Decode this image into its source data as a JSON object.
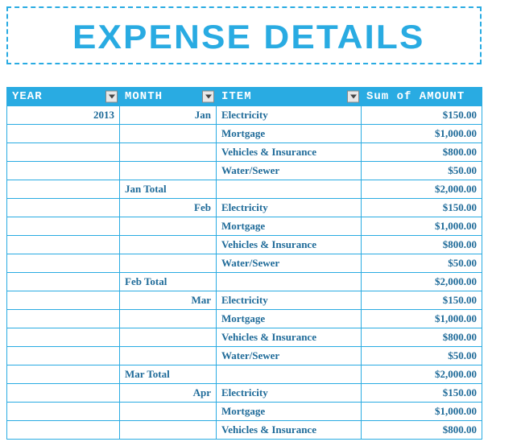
{
  "title": "EXPENSE DETAILS",
  "columns": {
    "year": "YEAR",
    "month": "MONTH",
    "item": "ITEM",
    "amount": "Sum of AMOUNT"
  },
  "colors": {
    "header_bg": "#29abe2",
    "header_text": "#ffffff",
    "border": "#29abe2",
    "cell_text": "#1f6b99",
    "title_color": "#29abe2"
  },
  "rows": [
    {
      "year": "2013",
      "month": "Jan",
      "month_align": "right",
      "item": "Electricity",
      "amount": "$150.00"
    },
    {
      "year": "",
      "month": "",
      "item": "Mortgage",
      "amount": "$1,000.00"
    },
    {
      "year": "",
      "month": "",
      "item": "Vehicles & Insurance",
      "amount": "$800.00"
    },
    {
      "year": "",
      "month": "",
      "item": "Water/Sewer",
      "amount": "$50.00"
    },
    {
      "year": "",
      "month": "Jan Total",
      "month_align": "left",
      "item": "",
      "amount": "$2,000.00"
    },
    {
      "year": "",
      "month": "Feb",
      "month_align": "right",
      "item": "Electricity",
      "amount": "$150.00"
    },
    {
      "year": "",
      "month": "",
      "item": "Mortgage",
      "amount": "$1,000.00"
    },
    {
      "year": "",
      "month": "",
      "item": "Vehicles & Insurance",
      "amount": "$800.00"
    },
    {
      "year": "",
      "month": "",
      "item": "Water/Sewer",
      "amount": "$50.00"
    },
    {
      "year": "",
      "month": "Feb Total",
      "month_align": "left",
      "item": "",
      "amount": "$2,000.00"
    },
    {
      "year": "",
      "month": "Mar",
      "month_align": "right",
      "item": "Electricity",
      "amount": "$150.00"
    },
    {
      "year": "",
      "month": "",
      "item": "Mortgage",
      "amount": "$1,000.00"
    },
    {
      "year": "",
      "month": "",
      "item": "Vehicles & Insurance",
      "amount": "$800.00"
    },
    {
      "year": "",
      "month": "",
      "item": "Water/Sewer",
      "amount": "$50.00"
    },
    {
      "year": "",
      "month": "Mar Total",
      "month_align": "left",
      "item": "",
      "amount": "$2,000.00"
    },
    {
      "year": "",
      "month": "Apr",
      "month_align": "right",
      "item": "Electricity",
      "amount": "$150.00"
    },
    {
      "year": "",
      "month": "",
      "item": "Mortgage",
      "amount": "$1,000.00"
    },
    {
      "year": "",
      "month": "",
      "item": "Vehicles & Insurance",
      "amount": "$800.00"
    }
  ]
}
